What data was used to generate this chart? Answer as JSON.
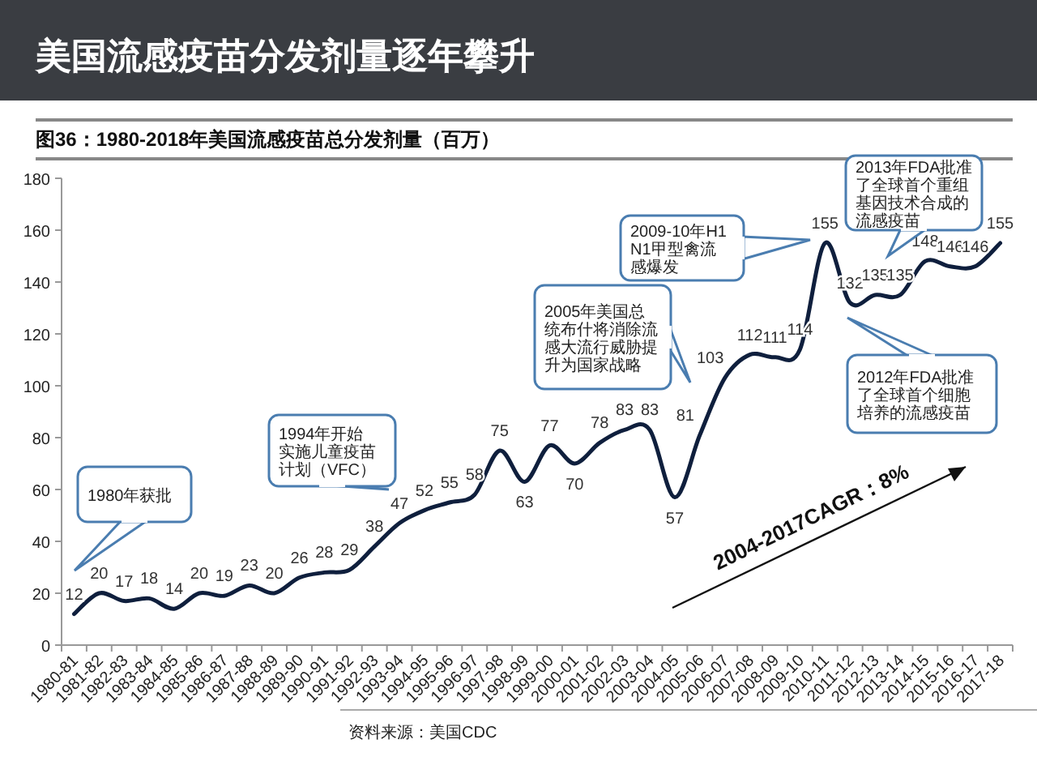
{
  "chart_data": {
    "type": "line",
    "title": "美国流感疫苗分发剂量逐年攀升",
    "subtitle": "图36：1980-2018年美国流感疫苗总分发剂量（百万）",
    "categories": [
      "1980-81",
      "1981-82",
      "1982-83",
      "1983-84",
      "1984-85",
      "1985-86",
      "1986-87",
      "1987-88",
      "1988-89",
      "1989-90",
      "1990-91",
      "1991-92",
      "1992-93",
      "1993-94",
      "1994-95",
      "1995-96",
      "1996-97",
      "1997-98",
      "1998-99",
      "1999-00",
      "2000-01",
      "2001-02",
      "2002-03",
      "2003-04",
      "2004-05",
      "2005-06",
      "2006-07",
      "2007-08",
      "2008-09",
      "2009-10",
      "2010-11",
      "2011-12",
      "2012-13",
      "2013-14",
      "2014-15",
      "2015-16",
      "2016-17",
      "2017-18"
    ],
    "series": [
      {
        "color": "#0f1f3d",
        "values": [
          12,
          20,
          17,
          18,
          14,
          20,
          19,
          23,
          20,
          26,
          28,
          29,
          38,
          47,
          52,
          55,
          58,
          75,
          63,
          77,
          70,
          78,
          83,
          83,
          57,
          81,
          103,
          112,
          111,
          114,
          155,
          132,
          135,
          135,
          148,
          146,
          146,
          155
        ]
      }
    ],
    "ylim": [
      0,
      180
    ],
    "yticks": [
      0,
      20,
      40,
      60,
      80,
      100,
      120,
      140,
      160,
      180
    ],
    "grid": false,
    "marker": "none",
    "line_style": "solid",
    "data_labels": true,
    "annotations": [
      "1980年获批",
      "1994年开始实施儿童疫苗计划（VFC）",
      "2005年美国总统布什将消除流感大流行威胁提升为国家战略",
      "2009-10年H1N1甲型禽流感爆发",
      "2013年FDA批准了全球首个重组基因技术合成的流感疫苗",
      "2012年FDA批准了全球首个细胞培养的流感疫苗",
      "2004-2017CAGR：8%",
      "资料来源：美国CDC"
    ]
  }
}
